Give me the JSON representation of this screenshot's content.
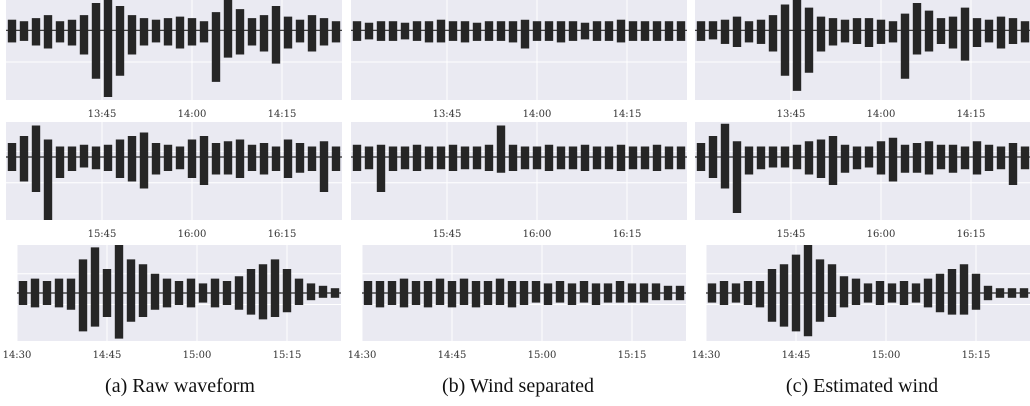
{
  "chart_data": [
    {
      "type": "waveform",
      "color": "#262626",
      "x": [
        810,
        812,
        814,
        816,
        818,
        820,
        822,
        824,
        826,
        828,
        830,
        832,
        834,
        836,
        838,
        840,
        842,
        844,
        846,
        848,
        850,
        852,
        854,
        856,
        858,
        860,
        862,
        864
      ],
      "xlim": [
        809,
        865
      ],
      "ylim": [
        -2.3,
        1
      ],
      "xticks": [
        {
          "value": 825,
          "label": "13:45"
        },
        {
          "value": 840,
          "label": "14:00"
        },
        {
          "value": 855,
          "label": "14:15"
        }
      ],
      "grid": true,
      "series": [
        {
          "values": [
            0.35,
            0.3,
            0.4,
            0.5,
            0.3,
            0.35,
            0.5,
            0.9,
            1.0,
            0.8,
            0.5,
            0.4,
            0.35,
            0.4,
            0.45,
            0.4,
            0.3,
            0.6,
            1.0,
            0.7,
            0.4,
            0.5,
            0.8,
            0.45,
            0.35,
            0.5,
            0.4,
            0.3
          ]
        },
        {
          "values": [
            -0.4,
            -0.35,
            -0.5,
            -0.6,
            -0.4,
            -0.5,
            -0.8,
            -1.6,
            -2.2,
            -1.5,
            -0.8,
            -0.5,
            -0.4,
            -0.5,
            -0.6,
            -0.5,
            -0.4,
            -1.7,
            -0.9,
            -0.8,
            -0.5,
            -0.7,
            -1.1,
            -0.6,
            -0.4,
            -0.7,
            -0.5,
            -0.4
          ]
        }
      ]
    },
    {
      "type": "waveform",
      "color": "#262626",
      "x": [
        810,
        812,
        814,
        816,
        818,
        820,
        822,
        824,
        826,
        828,
        830,
        832,
        834,
        836,
        838,
        840,
        842,
        844,
        846,
        848,
        850,
        852,
        854,
        856,
        858,
        860,
        862,
        864
      ],
      "xlim": [
        809,
        865
      ],
      "ylim": [
        -2.3,
        1
      ],
      "xticks": [
        {
          "value": 825,
          "label": "13:45"
        },
        {
          "value": 840,
          "label": "14:00"
        },
        {
          "value": 855,
          "label": "14:15"
        }
      ],
      "grid": true,
      "series": [
        {
          "values": [
            0.3,
            0.25,
            0.3,
            0.3,
            0.25,
            0.3,
            0.3,
            0.35,
            0.3,
            0.3,
            0.25,
            0.3,
            0.3,
            0.3,
            0.35,
            0.3,
            0.3,
            0.3,
            0.3,
            0.25,
            0.3,
            0.3,
            0.35,
            0.3,
            0.3,
            0.3,
            0.3,
            0.3
          ]
        },
        {
          "values": [
            -0.35,
            -0.3,
            -0.35,
            -0.35,
            -0.3,
            -0.35,
            -0.4,
            -0.4,
            -0.35,
            -0.4,
            -0.35,
            -0.35,
            -0.35,
            -0.4,
            -0.6,
            -0.35,
            -0.35,
            -0.4,
            -0.35,
            -0.3,
            -0.35,
            -0.35,
            -0.4,
            -0.35,
            -0.35,
            -0.35,
            -0.35,
            -0.35
          ]
        }
      ]
    },
    {
      "type": "waveform",
      "color": "#262626",
      "x": [
        810,
        812,
        814,
        816,
        818,
        820,
        822,
        824,
        826,
        828,
        830,
        832,
        834,
        836,
        838,
        840,
        842,
        844,
        846,
        848,
        850,
        852,
        854,
        856,
        858,
        860,
        862,
        864
      ],
      "xlim": [
        809,
        865
      ],
      "ylim": [
        -2.3,
        1
      ],
      "xticks": [
        {
          "value": 825,
          "label": "13:45"
        },
        {
          "value": 840,
          "label": "14:00"
        },
        {
          "value": 855,
          "label": "14:15"
        }
      ],
      "grid": true,
      "series": [
        {
          "values": [
            0.3,
            0.3,
            0.35,
            0.45,
            0.3,
            0.35,
            0.5,
            0.85,
            1.0,
            0.75,
            0.45,
            0.4,
            0.35,
            0.4,
            0.4,
            0.35,
            0.3,
            0.55,
            0.9,
            0.65,
            0.4,
            0.45,
            0.75,
            0.4,
            0.35,
            0.45,
            0.4,
            0.3
          ]
        },
        {
          "values": [
            -0.35,
            -0.3,
            -0.45,
            -0.55,
            -0.4,
            -0.45,
            -0.7,
            -1.5,
            -2.0,
            -1.4,
            -0.7,
            -0.5,
            -0.4,
            -0.45,
            -0.55,
            -0.45,
            -0.4,
            -1.6,
            -0.8,
            -0.7,
            -0.45,
            -0.6,
            -1.0,
            -0.55,
            -0.4,
            -0.6,
            -0.45,
            -0.4
          ]
        }
      ]
    },
    {
      "type": "waveform",
      "color": "#262626",
      "x": [
        930,
        932,
        934,
        936,
        938,
        940,
        942,
        944,
        946,
        948,
        950,
        952,
        954,
        956,
        958,
        960,
        962,
        964,
        966,
        968,
        970,
        972,
        974,
        976,
        978,
        980,
        982,
        984
      ],
      "xlim": [
        929,
        985
      ],
      "ylim": [
        -1.8,
        1
      ],
      "xticks": [
        {
          "value": 945,
          "label": "15:45"
        },
        {
          "value": 960,
          "label": "16:00"
        },
        {
          "value": 975,
          "label": "16:15"
        }
      ],
      "grid": true,
      "series": [
        {
          "values": [
            0.4,
            0.6,
            0.9,
            0.5,
            0.3,
            0.3,
            0.35,
            0.3,
            0.35,
            0.5,
            0.6,
            0.7,
            0.4,
            0.35,
            0.3,
            0.5,
            0.6,
            0.4,
            0.45,
            0.5,
            0.35,
            0.4,
            0.3,
            0.5,
            0.4,
            0.3,
            0.45,
            0.3
          ]
        },
        {
          "values": [
            -0.4,
            -0.7,
            -1.0,
            -1.8,
            -0.6,
            -0.4,
            -0.3,
            -0.35,
            -0.4,
            -0.6,
            -0.7,
            -0.9,
            -0.5,
            -0.4,
            -0.35,
            -0.6,
            -0.8,
            -0.5,
            -0.5,
            -0.6,
            -0.4,
            -0.5,
            -0.4,
            -0.6,
            -0.45,
            -0.4,
            -1.0,
            -0.4
          ]
        }
      ]
    },
    {
      "type": "waveform",
      "color": "#262626",
      "x": [
        930,
        932,
        934,
        936,
        938,
        940,
        942,
        944,
        946,
        948,
        950,
        952,
        954,
        956,
        958,
        960,
        962,
        964,
        966,
        968,
        970,
        972,
        974,
        976,
        978,
        980,
        982,
        984
      ],
      "xlim": [
        929,
        985
      ],
      "ylim": [
        -1.8,
        1
      ],
      "xticks": [
        {
          "value": 945,
          "label": "15:45"
        },
        {
          "value": 960,
          "label": "16:00"
        },
        {
          "value": 975,
          "label": "16:15"
        }
      ],
      "grid": true,
      "series": [
        {
          "values": [
            0.35,
            0.3,
            0.35,
            0.3,
            0.3,
            0.35,
            0.3,
            0.3,
            0.35,
            0.3,
            0.3,
            0.35,
            0.9,
            0.35,
            0.3,
            0.3,
            0.35,
            0.3,
            0.3,
            0.35,
            0.3,
            0.3,
            0.35,
            0.3,
            0.3,
            0.35,
            0.3,
            0.3
          ]
        },
        {
          "values": [
            -0.4,
            -0.35,
            -1.0,
            -0.4,
            -0.35,
            -0.4,
            -0.35,
            -0.35,
            -0.4,
            -0.35,
            -0.35,
            -0.4,
            -0.45,
            -0.4,
            -0.35,
            -0.35,
            -0.4,
            -0.35,
            -0.35,
            -0.4,
            -0.35,
            -0.35,
            -0.4,
            -0.35,
            -0.35,
            -0.4,
            -0.35,
            -0.35
          ]
        }
      ]
    },
    {
      "type": "waveform",
      "color": "#262626",
      "x": [
        930,
        932,
        934,
        936,
        938,
        940,
        942,
        944,
        946,
        948,
        950,
        952,
        954,
        956,
        958,
        960,
        962,
        964,
        966,
        968,
        970,
        972,
        974,
        976,
        978,
        980,
        982,
        984
      ],
      "xlim": [
        929,
        985
      ],
      "ylim": [
        -1.8,
        1
      ],
      "xticks": [
        {
          "value": 945,
          "label": "15:45"
        },
        {
          "value": 960,
          "label": "16:00"
        },
        {
          "value": 975,
          "label": "16:15"
        }
      ],
      "grid": true,
      "series": [
        {
          "values": [
            0.4,
            0.6,
            0.95,
            0.45,
            0.3,
            0.3,
            0.3,
            0.3,
            0.35,
            0.45,
            0.5,
            0.6,
            0.35,
            0.3,
            0.3,
            0.45,
            0.55,
            0.35,
            0.4,
            0.45,
            0.35,
            0.35,
            0.3,
            0.45,
            0.35,
            0.3,
            0.4,
            0.3
          ]
        },
        {
          "values": [
            -0.4,
            -0.6,
            -0.9,
            -1.6,
            -0.5,
            -0.35,
            -0.3,
            -0.3,
            -0.35,
            -0.5,
            -0.6,
            -0.8,
            -0.45,
            -0.35,
            -0.3,
            -0.5,
            -0.7,
            -0.45,
            -0.45,
            -0.5,
            -0.35,
            -0.45,
            -0.35,
            -0.5,
            -0.4,
            -0.35,
            -0.8,
            -0.35
          ]
        }
      ]
    },
    {
      "type": "waveform",
      "color": "#262626",
      "x": [
        871,
        873,
        875,
        877,
        879,
        881,
        883,
        885,
        887,
        889,
        891,
        893,
        895,
        897,
        899,
        901,
        903,
        905,
        907,
        909,
        911,
        913,
        915,
        917,
        919,
        921,
        923
      ],
      "xlim": [
        870,
        924
      ],
      "ylim": [
        -1,
        1
      ],
      "xticks": [
        {
          "value": 870,
          "label": "14:30"
        },
        {
          "value": 885,
          "label": "14:45"
        },
        {
          "value": 900,
          "label": "15:00"
        },
        {
          "value": 915,
          "label": "15:15"
        }
      ],
      "grid": true,
      "series": [
        {
          "values": [
            0.25,
            0.3,
            0.25,
            0.3,
            0.3,
            0.7,
            0.95,
            0.5,
            1.0,
            0.7,
            0.6,
            0.4,
            0.3,
            0.25,
            0.3,
            0.2,
            0.3,
            0.25,
            0.35,
            0.5,
            0.6,
            0.7,
            0.5,
            0.3,
            0.2,
            0.15,
            0.1
          ]
        },
        {
          "values": [
            -0.25,
            -0.3,
            -0.25,
            -0.3,
            -0.35,
            -0.8,
            -0.7,
            -0.5,
            -0.95,
            -0.6,
            -0.5,
            -0.35,
            -0.3,
            -0.25,
            -0.3,
            -0.2,
            -0.3,
            -0.25,
            -0.35,
            -0.45,
            -0.55,
            -0.5,
            -0.4,
            -0.25,
            -0.15,
            -0.1,
            -0.1
          ]
        }
      ]
    },
    {
      "type": "waveform",
      "color": "#262626",
      "x": [
        871,
        873,
        875,
        877,
        879,
        881,
        883,
        885,
        887,
        889,
        891,
        893,
        895,
        897,
        899,
        901,
        903,
        905,
        907,
        909,
        911,
        913,
        915,
        917,
        919,
        921,
        923
      ],
      "xlim": [
        870,
        924
      ],
      "ylim": [
        -1,
        1
      ],
      "xticks": [
        {
          "value": 870,
          "label": "14:30"
        },
        {
          "value": 885,
          "label": "14:45"
        },
        {
          "value": 900,
          "label": "15:00"
        },
        {
          "value": 915,
          "label": "15:15"
        }
      ],
      "grid": true,
      "series": [
        {
          "values": [
            0.25,
            0.25,
            0.25,
            0.3,
            0.25,
            0.25,
            0.3,
            0.25,
            0.3,
            0.25,
            0.25,
            0.3,
            0.25,
            0.25,
            0.25,
            0.2,
            0.25,
            0.2,
            0.25,
            0.2,
            0.2,
            0.25,
            0.2,
            0.2,
            0.2,
            0.15,
            0.15
          ]
        },
        {
          "values": [
            -0.25,
            -0.3,
            -0.25,
            -0.3,
            -0.25,
            -0.3,
            -0.25,
            -0.3,
            -0.25,
            -0.3,
            -0.25,
            -0.25,
            -0.3,
            -0.25,
            -0.2,
            -0.25,
            -0.2,
            -0.25,
            -0.2,
            -0.25,
            -0.2,
            -0.2,
            -0.2,
            -0.2,
            -0.15,
            -0.15,
            -0.15
          ]
        }
      ]
    },
    {
      "type": "waveform",
      "color": "#262626",
      "x": [
        871,
        873,
        875,
        877,
        879,
        881,
        883,
        885,
        887,
        889,
        891,
        893,
        895,
        897,
        899,
        901,
        903,
        905,
        907,
        909,
        911,
        913,
        915,
        917,
        919,
        921,
        923
      ],
      "xlim": [
        870,
        924
      ],
      "ylim": [
        -1,
        1
      ],
      "xticks": [
        {
          "value": 870,
          "label": "14:30"
        },
        {
          "value": 885,
          "label": "14:45"
        },
        {
          "value": 900,
          "label": "15:00"
        },
        {
          "value": 915,
          "label": "15:15"
        }
      ],
      "grid": true,
      "series": [
        {
          "values": [
            0.2,
            0.25,
            0.2,
            0.25,
            0.25,
            0.5,
            0.6,
            0.8,
            1.0,
            0.7,
            0.6,
            0.35,
            0.3,
            0.2,
            0.25,
            0.2,
            0.25,
            0.2,
            0.3,
            0.4,
            0.5,
            0.6,
            0.4,
            0.15,
            0.1,
            0.1,
            0.1
          ]
        },
        {
          "values": [
            -0.2,
            -0.25,
            -0.2,
            -0.25,
            -0.3,
            -0.6,
            -0.7,
            -0.8,
            -0.9,
            -0.6,
            -0.5,
            -0.3,
            -0.25,
            -0.2,
            -0.25,
            -0.2,
            -0.25,
            -0.2,
            -0.3,
            -0.4,
            -0.45,
            -0.45,
            -0.35,
            -0.15,
            -0.1,
            -0.1,
            -0.1
          ]
        }
      ]
    }
  ],
  "figure": {
    "captions": [
      "(a) Raw waveform",
      "(b) Wind separated",
      "(c) Estimated wind"
    ]
  }
}
